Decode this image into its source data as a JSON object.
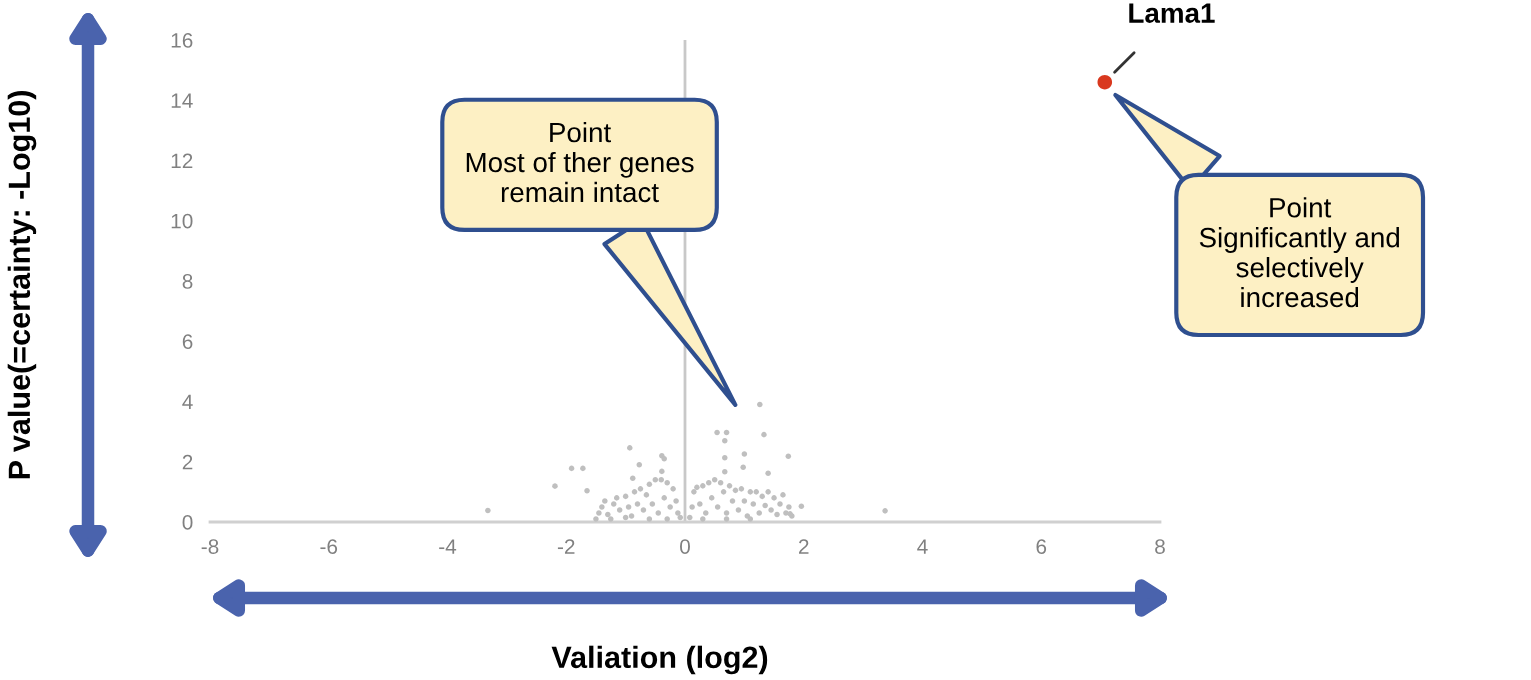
{
  "chart_data": {
    "type": "scatter",
    "xlabel": "Valiation (log2)",
    "ylabel": "P value(=certainty: -Log10)",
    "xlim": [
      -8,
      8
    ],
    "xticks": [
      -8,
      -6,
      -4,
      -2,
      0,
      2,
      4,
      6,
      8
    ],
    "ylim": [
      0,
      16
    ],
    "yticks": [
      0,
      2,
      4,
      6,
      8,
      10,
      12,
      14,
      16
    ],
    "grid": false,
    "legend": false,
    "marker": "circle",
    "ref_lines": [
      {
        "axis": "x",
        "value": 0,
        "color": "#c8c8c8"
      }
    ],
    "series": [
      {
        "color": "#bfbfbf",
        "x": [
          -1.5,
          -1.45,
          -1.4,
          -1.35,
          -1.3,
          -1.2,
          -1.15,
          -1.1,
          -1.0,
          -0.95,
          -0.9,
          -0.85,
          -0.8,
          -0.75,
          -0.7,
          -0.65,
          -0.6,
          -0.55,
          -0.5,
          -0.45,
          -0.4,
          -0.35,
          -0.3,
          -0.25,
          -0.2,
          -0.15,
          -0.12,
          -0.08,
          -1.25,
          -1.0,
          -0.6,
          -0.3,
          0.08,
          0.12,
          0.15,
          0.2,
          0.25,
          0.3,
          0.35,
          0.4,
          0.45,
          0.5,
          0.55,
          0.6,
          0.65,
          0.7,
          0.75,
          0.8,
          0.85,
          0.9,
          0.95,
          1.0,
          1.05,
          1.1,
          1.15,
          1.2,
          1.25,
          1.3,
          1.35,
          1.4,
          1.45,
          1.5,
          1.55,
          1.6,
          1.65,
          1.7,
          1.75,
          1.8,
          0.3,
          0.7,
          1.1,
          1.26,
          0.54,
          0.7,
          0.67,
          1.33,
          -0.93,
          -0.39,
          -0.35,
          -0.77,
          -0.39,
          -1.91,
          -1.72,
          -2.19,
          -1.65,
          -3.32,
          -0.88,
          0.67,
          1.0,
          1.74,
          0.98,
          1.4,
          0.67,
          1.96,
          1.77,
          3.37
        ],
        "values": [
          0.1,
          0.3,
          0.5,
          0.7,
          0.25,
          0.6,
          0.8,
          0.4,
          0.85,
          0.5,
          0.2,
          1.0,
          0.6,
          1.1,
          0.4,
          0.9,
          1.25,
          0.6,
          1.4,
          0.3,
          1.4,
          0.8,
          1.3,
          0.5,
          1.1,
          0.7,
          0.3,
          0.15,
          0.1,
          0.15,
          0.1,
          0.1,
          0.15,
          0.5,
          1.0,
          1.15,
          0.6,
          1.2,
          0.3,
          1.3,
          0.8,
          1.4,
          0.5,
          1.3,
          1.0,
          0.3,
          1.2,
          0.7,
          1.05,
          0.4,
          1.1,
          0.7,
          0.2,
          1.0,
          0.6,
          1.0,
          0.3,
          0.85,
          0.55,
          1.0,
          0.4,
          0.8,
          0.25,
          0.6,
          0.9,
          0.3,
          0.5,
          0.2,
          0.1,
          0.1,
          0.1,
          3.9,
          2.97,
          2.97,
          2.7,
          2.9,
          2.46,
          2.2,
          2.1,
          1.9,
          1.68,
          1.78,
          1.78,
          1.19,
          1.04,
          0.38,
          1.45,
          2.13,
          2.26,
          2.18,
          1.82,
          1.62,
          1.67,
          0.52,
          0.27,
          0.37
        ]
      },
      {
        "color": "#d9381e",
        "x": [
          7.07
        ],
        "values": [
          14.6
        ]
      }
    ],
    "annotations": [
      "Point\nMost of ther genes\nremain intact",
      "Point\nSignificantly and\nselectively\nincreased",
      {
        "text": "Lama1",
        "x": 7.07,
        "y": 14.6
      }
    ]
  }
}
